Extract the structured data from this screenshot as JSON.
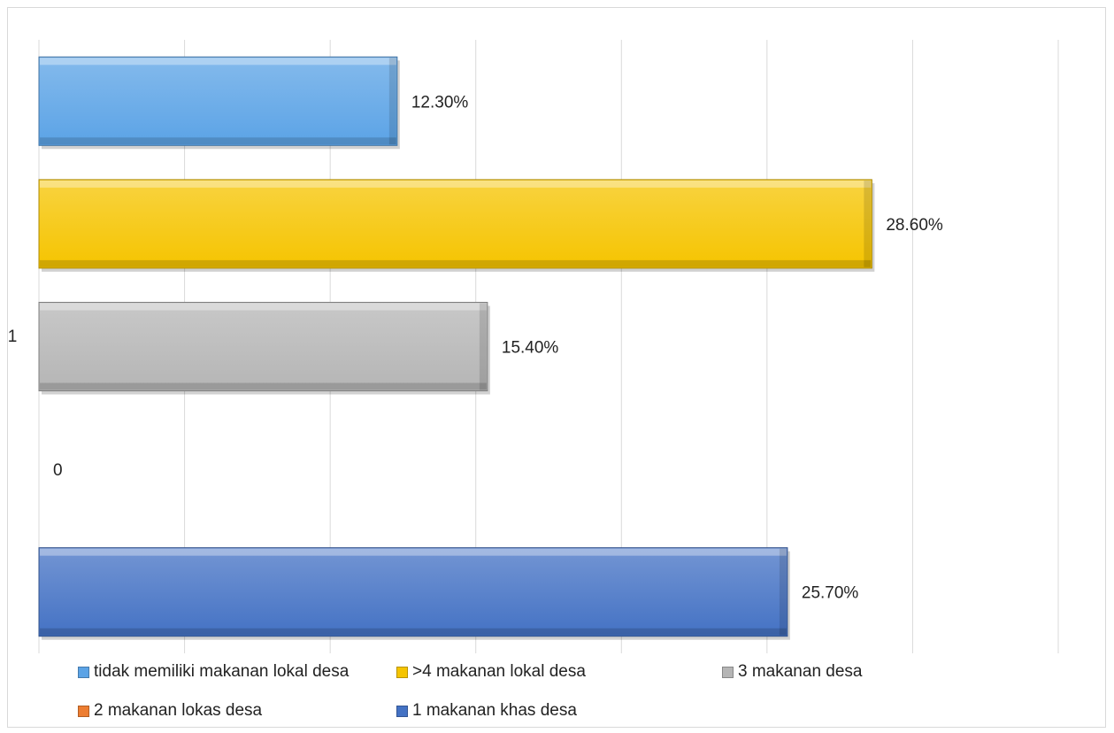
{
  "chart_data": {
    "type": "bar",
    "orientation": "horizontal",
    "title": "",
    "xlabel": "",
    "ylabel": "",
    "categories": [
      "1"
    ],
    "xlim": [
      0,
      0.35
    ],
    "grid": true,
    "legend_position": "bottom",
    "series": [
      {
        "name": "tidak memiliki makanan lokal desa",
        "values": [
          0.123
        ],
        "label": "12.30%",
        "color": "#5ba3e6"
      },
      {
        "name": ">4 makanan lokal desa",
        "values": [
          0.286
        ],
        "label": "28.60%",
        "color": "#f5c400"
      },
      {
        "name": "3 makanan desa",
        "values": [
          0.154
        ],
        "label": "15.40%",
        "color": "#b5b5b5"
      },
      {
        "name": "2 makanan lokas desa",
        "values": [
          0
        ],
        "label": "0",
        "color": "#ed7d31"
      },
      {
        "name": "1 makanan khas desa",
        "values": [
          0.257
        ],
        "label": "25.70%",
        "color": "#4472c4"
      }
    ]
  }
}
